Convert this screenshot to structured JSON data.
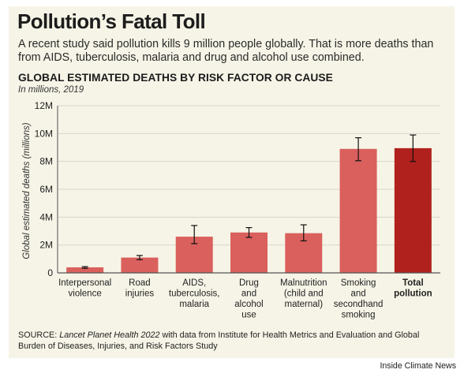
{
  "header": {
    "title": "Pollution’s Fatal Toll",
    "subtitle": "A recent study said pollution kills 9 million people globally. That is more deaths than from AIDS, tuberculosis, malaria and drug and alcohol use combined."
  },
  "chart_data": {
    "type": "bar",
    "title": "GLOBAL ESTIMATED DEATHS BY RISK FACTOR OR CAUSE",
    "subtitle": "In millions, 2019",
    "ylabel": "Global estimated deaths (millions)",
    "xlabel": "",
    "ylim": [
      0,
      12
    ],
    "yticks": [
      0,
      2,
      4,
      6,
      8,
      10,
      12
    ],
    "ytick_labels": [
      "0",
      "2M",
      "4M",
      "6M",
      "8M",
      "10M",
      "12M"
    ],
    "grid": true,
    "categories": [
      [
        "Interpersonal",
        "violence"
      ],
      [
        "Road",
        "injuries"
      ],
      [
        "AIDS,",
        "tuberculosis,",
        "malaria"
      ],
      [
        "Drug",
        "and",
        "alcohol",
        "use"
      ],
      [
        "Malnutrition",
        "(child and",
        "maternal)"
      ],
      [
        "Smoking",
        "and",
        "secondhand",
        "smoking"
      ],
      [
        "Total",
        "pollution"
      ]
    ],
    "values": [
      0.4,
      1.1,
      2.6,
      2.9,
      2.85,
      8.9,
      8.95
    ],
    "error_low": [
      0.33,
      0.95,
      2.1,
      2.55,
      2.3,
      8.05,
      8.0
    ],
    "error_high": [
      0.45,
      1.25,
      3.4,
      3.25,
      3.45,
      9.7,
      9.9
    ],
    "colors": {
      "bar": "#d9605c",
      "highlight": "#b0201c",
      "grid": "#d8d6cb",
      "axis": "#555555",
      "error": "#111111"
    },
    "highlight_index": 6
  },
  "footer": {
    "source_prefix": "SOURCE: ",
    "source_publication": "Lancet Planet Health 2022",
    "source_rest": " with data from Institute for Health Metrics and Evaluation and Global Burden of Diseases, Injuries, and Risk Factors Study",
    "credit": "Inside Climate News"
  }
}
